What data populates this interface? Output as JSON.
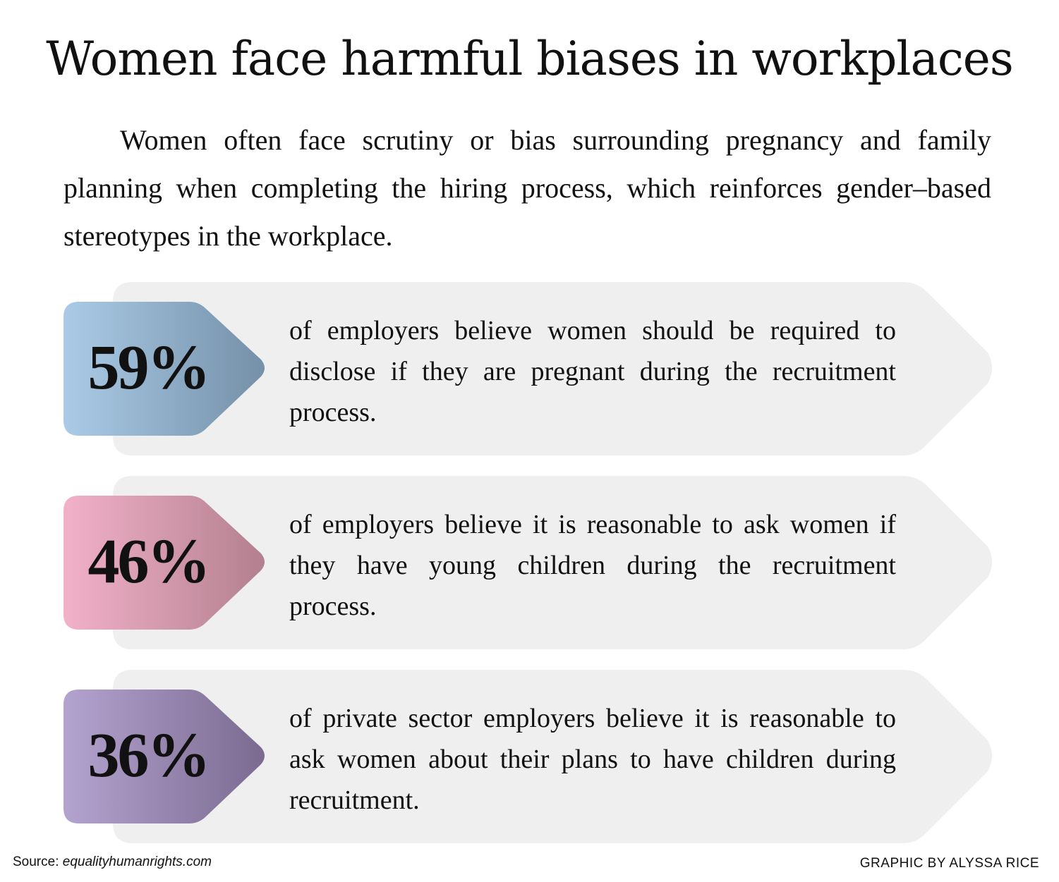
{
  "title": "Women face harmful biases in workplaces",
  "intro": "Women often face  scrutiny or bias surrounding pregnancy and family planning when completing the hiring process, which reinforces gender–based stereotypes in the workplace.",
  "stats": [
    {
      "value": "59%",
      "text": "of employers believe women should be required to disclose if they are pregnant during the recruitment process.",
      "gradient": [
        "#aacbe7",
        "#7590a8"
      ]
    },
    {
      "value": "46%",
      "text": "of employers believe it is reasonable to ask women if they have young children during the recruitment process.",
      "gradient": [
        "#f2b1c9",
        "#b3808f"
      ]
    },
    {
      "value": "36%",
      "text": "of private sector employers believe it is reasonable to ask women about their plans to have children during recruitment.",
      "gradient": [
        "#b3a3cf",
        "#7b6a90"
      ]
    }
  ],
  "footer": {
    "source_label": "Source: ",
    "source_site": "equalityhumanrights.com",
    "credit": "GRAPHIC BY ALYSSA RICE"
  },
  "colors": {
    "panel": "#efefef",
    "text": "#111111"
  }
}
